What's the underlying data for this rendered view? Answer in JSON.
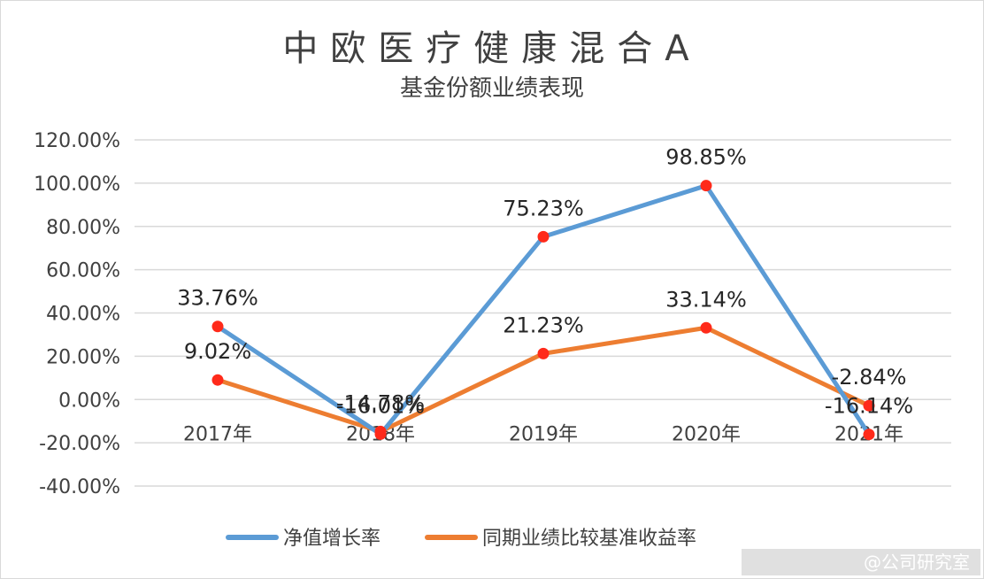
{
  "chart_data": {
    "type": "line",
    "title": "中欧医疗健康混合A",
    "subtitle": "基金份额业绩表现",
    "categories": [
      "2017年",
      "2018年",
      "2019年",
      "2020年",
      "2021年"
    ],
    "series": [
      {
        "name": "净值增长率",
        "values": [
          33.76,
          -16.01,
          75.23,
          98.85,
          -16.14
        ],
        "labels": [
          "33.76%",
          "-16.01%",
          "75.23%",
          "98.85%",
          "-16.14%"
        ],
        "color": "#5b9bd5"
      },
      {
        "name": "同期业绩比较基准收益率",
        "values": [
          9.02,
          -14.78,
          21.23,
          33.14,
          -2.84
        ],
        "labels": [
          "9.02%",
          "-14.78%",
          "21.23%",
          "33.14%",
          "-2.84%"
        ],
        "color": "#ed7d31"
      }
    ],
    "y_ticks": [
      "120.00%",
      "100.00%",
      "80.00%",
      "60.00%",
      "40.00%",
      "20.00%",
      "0.00%",
      "-20.00%",
      "-40.00%"
    ],
    "ylim": [
      -40,
      120
    ],
    "grid": true,
    "legend_position": "bottom",
    "marker_color": "#ff2a1a"
  },
  "watermark": {
    "text": "@公司研究室"
  }
}
